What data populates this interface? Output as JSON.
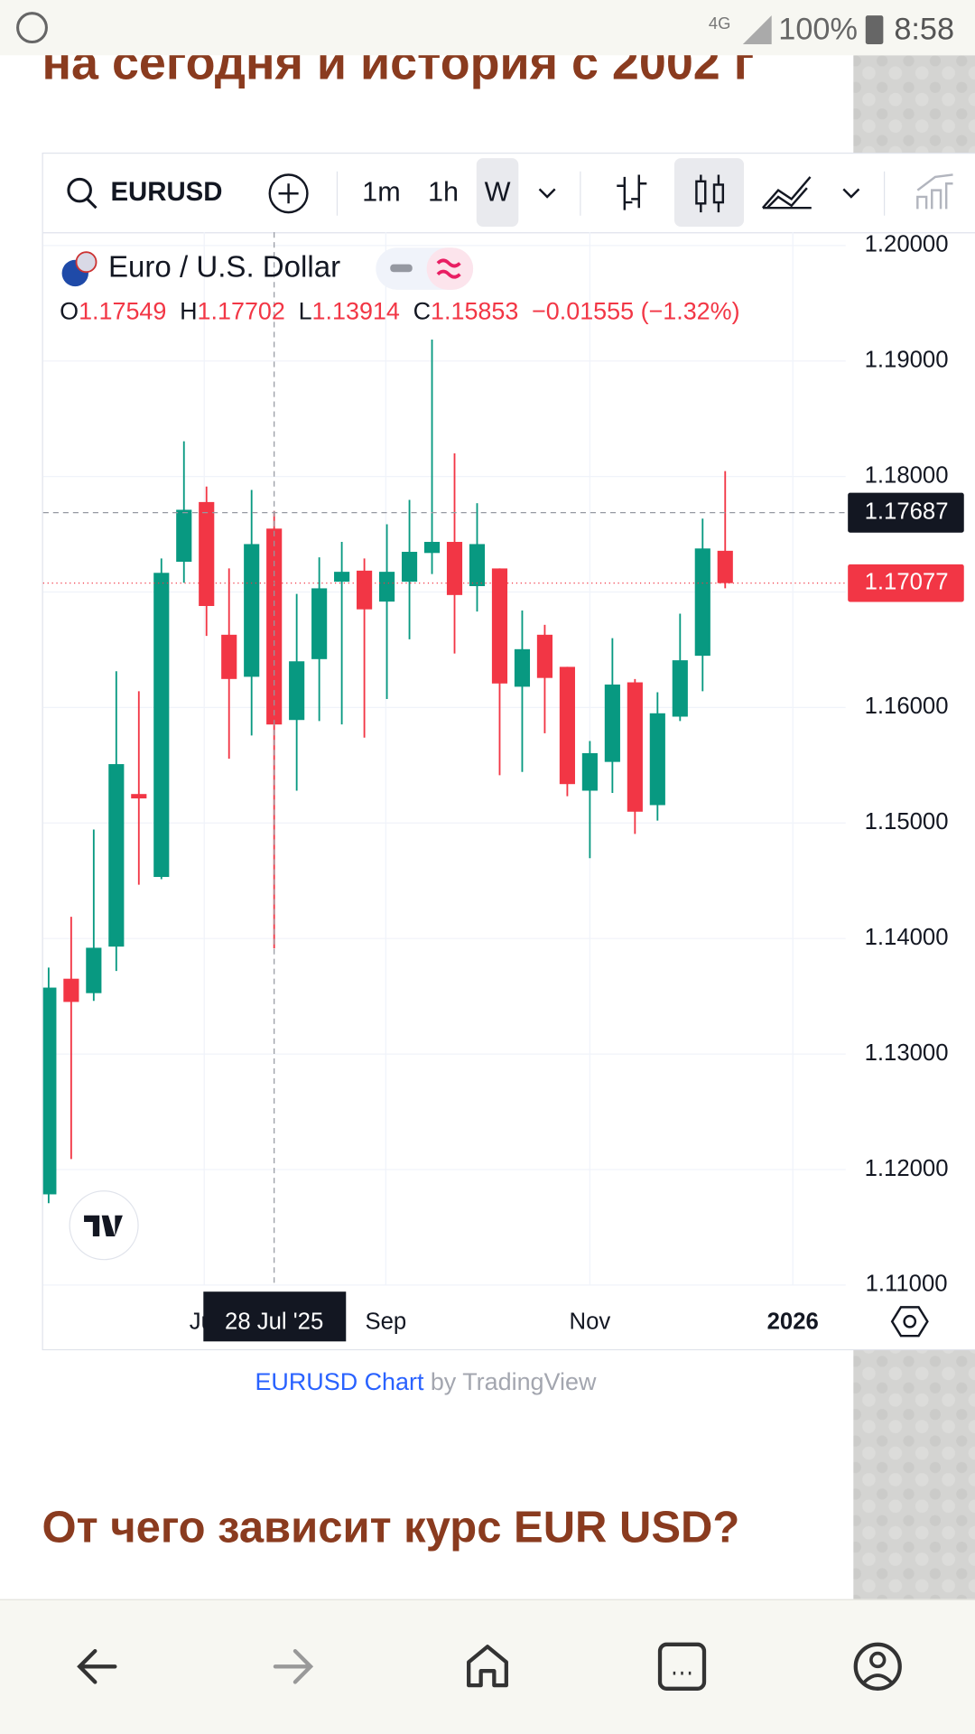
{
  "status_bar": {
    "network": "4G",
    "battery": "100%",
    "time": "8:58"
  },
  "article": {
    "heading_partial": "на сегодня и история с 2002 г",
    "heading": "От чего зависит курс EUR USD?"
  },
  "widget": {
    "symbol": "EURUSD",
    "intervals": [
      "1m",
      "1h",
      "W"
    ],
    "attribution_link": "EURUSD Chart",
    "attribution_by": "by TradingView"
  },
  "chart_data": {
    "type": "candlestick",
    "title": "Euro / U.S. Dollar",
    "legend_keys": [
      "O",
      "H",
      "L",
      "C"
    ],
    "change_label": "−0.01555 (−1.32%)",
    "categories": [
      null,
      null,
      null,
      null,
      null,
      null,
      null,
      null,
      null,
      null,
      "28 Jul '25",
      null,
      null,
      null,
      null,
      null,
      null,
      null,
      null,
      null,
      null,
      null,
      null,
      null,
      null,
      null,
      null,
      null,
      null,
      null,
      null
    ],
    "open": [
      1.11785,
      1.13652,
      1.13527,
      1.1393,
      1.15251,
      1.14533,
      1.17262,
      1.17779,
      1.1663,
      1.16266,
      1.17549,
      1.15892,
      1.16419,
      1.17089,
      1.17185,
      1.16917,
      1.17089,
      1.17338,
      1.17434,
      1.17051,
      1.17204,
      1.1618,
      1.1663,
      1.16352,
      1.1528,
      1.15529,
      1.16218,
      1.15155,
      1.15921,
      1.16448,
      1.17357
    ],
    "high": [
      1.13748,
      1.14188,
      1.14944,
      1.16314,
      1.16141,
      1.1729,
      1.18305,
      1.17913,
      1.17204,
      1.17884,
      1.17702,
      1.16984,
      1.173,
      1.17434,
      1.1729,
      1.17587,
      1.17798,
      1.19186,
      1.182,
      1.17769,
      1.17204,
      1.1684,
      1.16716,
      1.16352,
      1.1571,
      1.166,
      1.16247,
      1.16132,
      1.16812,
      1.17635,
      1.18047
    ],
    "low": [
      1.11708,
      1.12091,
      1.1346,
      1.13719,
      1.14466,
      1.14514,
      1.1708,
      1.1662,
      1.15557,
      1.15758,
      1.13914,
      1.1528,
      1.15883,
      1.15854,
      1.15739,
      1.16074,
      1.16591,
      1.17156,
      1.16467,
      1.16831,
      1.15414,
      1.15442,
      1.15777,
      1.15232,
      1.14695,
      1.1526,
      1.14906,
      1.15021,
      1.15883,
      1.16141,
      1.17032
    ],
    "close": [
      1.13575,
      1.13451,
      1.1392,
      1.1551,
      1.15213,
      1.17166,
      1.17712,
      1.16879,
      1.16247,
      1.17415,
      1.15853,
      1.164,
      1.17032,
      1.17175,
      1.1685,
      1.17175,
      1.17348,
      1.17434,
      1.16974,
      1.17415,
      1.16208,
      1.16505,
      1.16256,
      1.15337,
      1.15605,
      1.16199,
      1.15098,
      1.1595,
      1.16409,
      1.17377,
      1.17077
    ],
    "up_color": "#089981",
    "down_color": "#f23645",
    "ylim": [
      1.11,
      1.20115
    ],
    "yticks": [
      {
        "value": 1.11,
        "label": "1.11000"
      },
      {
        "value": 1.12,
        "label": "1.12000"
      },
      {
        "value": 1.13,
        "label": "1.13000"
      },
      {
        "value": 1.14,
        "label": "1.14000"
      },
      {
        "value": 1.15,
        "label": "1.15000"
      },
      {
        "value": 1.16,
        "label": "1.16000"
      },
      {
        "value": 1.17,
        "label": "1.17000"
      },
      {
        "value": 1.18,
        "label": "1.18000"
      },
      {
        "value": 1.19,
        "label": "1.19000"
      },
      {
        "value": 1.2,
        "label": "1.20000"
      }
    ],
    "xticks": [
      {
        "value": 6.9,
        "label": "Jul"
      },
      {
        "value": 14.95,
        "label": "Sep"
      },
      {
        "value": 24,
        "label": "Nov"
      },
      {
        "value": 33,
        "label": "2026"
      }
    ],
    "crosshair_price": 1.17687,
    "last_price": 1.17077,
    "grid": true
  }
}
